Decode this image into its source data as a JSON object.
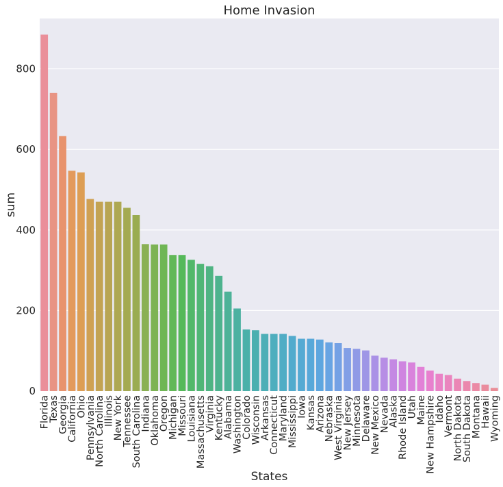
{
  "chart_data": {
    "type": "bar",
    "title": "Home Invasion",
    "xlabel": "States",
    "ylabel": "sum",
    "ylim": [
      0,
      925
    ],
    "yticks": [
      0,
      200,
      400,
      600,
      800
    ],
    "grid": true,
    "legend": "none",
    "categories": [
      "Florida",
      "Texas",
      "Georgia",
      "California",
      "Ohio",
      "Pennsylvania",
      "North Carolina",
      "Illinois",
      "New York",
      "Tennessee",
      "South Carolina",
      "Indiana",
      "Oklahoma",
      "Oregon",
      "Michigan",
      "Missouri",
      "Louisiana",
      "Massachusetts",
      "Virginia",
      "Kentucky",
      "Alabama",
      "Washington",
      "Colorado",
      "Wisconsin",
      "Arkansas",
      "Connecticut",
      "Maryland",
      "Mississippi",
      "Iowa",
      "Kansas",
      "Arizona",
      "Nebraska",
      "West Virginia",
      "New Jersey",
      "Minnesota",
      "Delaware",
      "New Mexico",
      "Nevada",
      "Alaska",
      "Rhode Island",
      "Utah",
      "Maine",
      "New Hampshire",
      "Idaho",
      "Vermont",
      "North Dakota",
      "South Dakota",
      "Montana",
      "Hawaii",
      "Wyoming"
    ],
    "values": [
      885,
      740,
      633,
      547,
      543,
      477,
      470,
      470,
      470,
      455,
      437,
      365,
      364,
      364,
      338,
      338,
      326,
      316,
      310,
      286,
      247,
      205,
      153,
      151,
      142,
      142,
      142,
      137,
      130,
      130,
      128,
      121,
      119,
      107,
      105,
      101,
      88,
      83,
      79,
      74,
      71,
      60,
      51,
      43,
      40,
      31,
      25,
      20,
      16,
      8
    ],
    "colors": [
      "#ea8f9a",
      "#e89484",
      "#e8936d",
      "#e39a5c",
      "#dd9e54",
      "#cfa153",
      "#c3a353",
      "#b8a553",
      "#aea852",
      "#a4aa51",
      "#9aac51",
      "#8ab053",
      "#7db354",
      "#6fb655",
      "#61b857",
      "#55b95a",
      "#52b86a",
      "#50b676",
      "#4fb483",
      "#4eb38e",
      "#4db298",
      "#4cb1a1",
      "#4bb0a9",
      "#4bafb0",
      "#4dafb7",
      "#4eaebe",
      "#50adc5",
      "#52abcd",
      "#55aad3",
      "#58a8d9",
      "#5ea6df",
      "#68a4e3",
      "#74a1e5",
      "#829fe6",
      "#909ae6",
      "#9e96e6",
      "#aa91e6",
      "#b78de5",
      "#c489e3",
      "#cf85e0",
      "#d983dc",
      "#e281d7",
      "#e880ce",
      "#ea82c6",
      "#ea84be",
      "#eb86b5",
      "#eb88ad",
      "#eb8aa5",
      "#ea8c9e",
      "#ea8e98"
    ]
  }
}
